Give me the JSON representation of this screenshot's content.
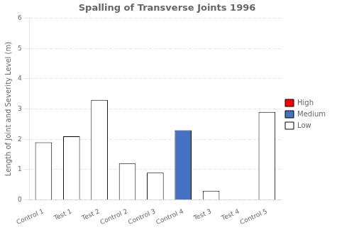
{
  "chart_data": {
    "type": "bar",
    "title": "Spalling of Transverse Joints 1996",
    "ylabel": "Length of Joint and Severity Level (m)",
    "categories": [
      "Control 1",
      "Test 1",
      "Test 2",
      "Control 2",
      "Control 3",
      "Control 4",
      "Test 3",
      "Test 4",
      "Control 5"
    ],
    "series": [
      {
        "name": "Low",
        "color": "#ffffff",
        "values": [
          1.9,
          2.1,
          3.3,
          1.2,
          0.9,
          0.0,
          0.3,
          0.0,
          2.9
        ]
      },
      {
        "name": "Medium",
        "color": "#4472c4",
        "values": [
          0.0,
          0.0,
          0.0,
          0.0,
          0.0,
          2.3,
          0.0,
          0.0,
          0.0
        ]
      },
      {
        "name": "High",
        "color": "#ff0000",
        "values": [
          0.0,
          0.0,
          0.0,
          0.0,
          0.0,
          0.0,
          0.0,
          0.0,
          0.0
        ]
      }
    ],
    "ylim": [
      0,
      6
    ],
    "yticks": [
      0,
      1,
      2,
      3,
      4,
      5,
      6
    ],
    "grid": true,
    "legend": "right"
  }
}
